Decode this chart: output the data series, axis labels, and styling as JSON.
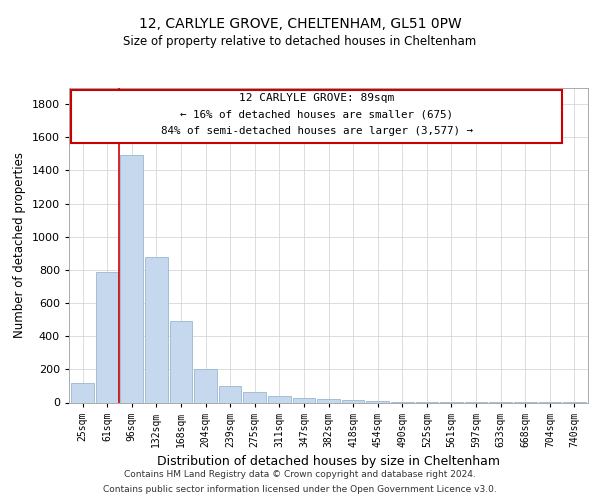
{
  "title1": "12, CARLYLE GROVE, CHELTENHAM, GL51 0PW",
  "title2": "Size of property relative to detached houses in Cheltenham",
  "xlabel": "Distribution of detached houses by size in Cheltenham",
  "ylabel": "Number of detached properties",
  "categories": [
    "25sqm",
    "61sqm",
    "96sqm",
    "132sqm",
    "168sqm",
    "204sqm",
    "239sqm",
    "275sqm",
    "311sqm",
    "347sqm",
    "382sqm",
    "418sqm",
    "454sqm",
    "490sqm",
    "525sqm",
    "561sqm",
    "597sqm",
    "633sqm",
    "668sqm",
    "704sqm",
    "740sqm"
  ],
  "values": [
    120,
    790,
    1490,
    875,
    490,
    200,
    100,
    62,
    42,
    28,
    22,
    15,
    10,
    5,
    3,
    2,
    1,
    1,
    1,
    1,
    1
  ],
  "bar_color": "#c5d8ed",
  "bar_edge_color": "#9ab8d0",
  "ylim": [
    0,
    1900
  ],
  "yticks": [
    0,
    200,
    400,
    600,
    800,
    1000,
    1200,
    1400,
    1600,
    1800
  ],
  "annotation_line1": "12 CARLYLE GROVE: 89sqm",
  "annotation_line2": "← 16% of detached houses are smaller (675)",
  "annotation_line3": "84% of semi-detached houses are larger (3,577) →",
  "annotation_box_color": "#cc0000",
  "red_line_x": 1.5,
  "footer_line1": "Contains HM Land Registry data © Crown copyright and database right 2024.",
  "footer_line2": "Contains public sector information licensed under the Open Government Licence v3.0.",
  "background_color": "#ffffff",
  "grid_color": "#d0d0d0"
}
